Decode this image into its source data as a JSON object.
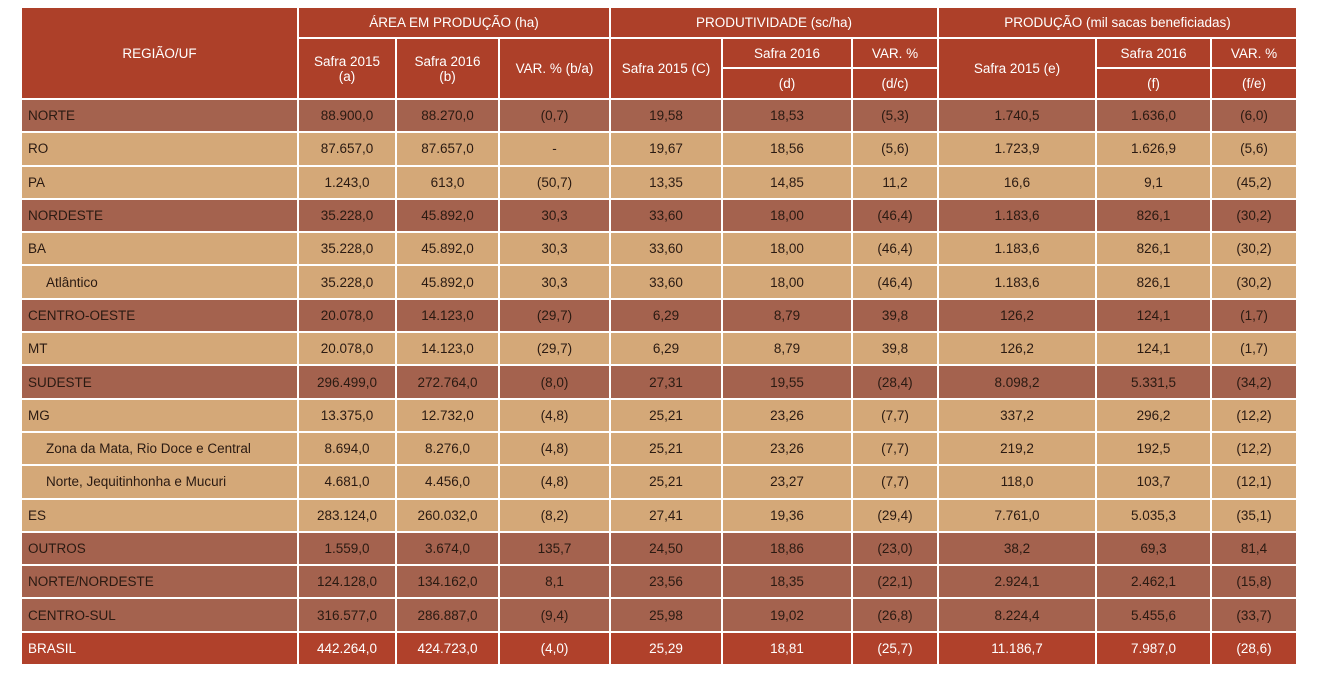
{
  "header": {
    "region_label": "REGIÃO/UF",
    "groups": [
      "ÁREA EM PRODUÇÃO (ha)",
      "PRODUTIVIDADE (sc/ha)",
      "PRODUÇÃO (mil sacas beneficiadas)"
    ],
    "area": {
      "a_line1": "Safra 2015",
      "a_line2": "(a)",
      "b_line1": "Safra 2016",
      "b_line2": "(b)",
      "var": "VAR. % (b/a)"
    },
    "prod": {
      "c": "Safra 2015 (C)",
      "d_top": "Safra 2016",
      "d_bottom": "(d)",
      "var_top": "VAR. %",
      "var_bottom": "(d/c)"
    },
    "producao": {
      "e": "Safra 2015 (e)",
      "f_top": "Safra 2016",
      "f_bottom": "(f)",
      "var_top": "VAR. %",
      "var_bottom": "(f/e)"
    }
  },
  "colors": {
    "header": "#ad4029",
    "region": "#a4624e",
    "state": "#d4a878",
    "total": "#b0412b"
  },
  "rows": [
    {
      "type": "region",
      "label": "NORTE",
      "values": [
        "88.900,0",
        "88.270,0",
        "(0,7)",
        "19,58",
        "18,53",
        "(5,3)",
        "1.740,5",
        "1.636,0",
        "(6,0)"
      ]
    },
    {
      "type": "state",
      "label": "RO",
      "values": [
        "87.657,0",
        "87.657,0",
        "-",
        "19,67",
        "18,56",
        "(5,6)",
        "1.723,9",
        "1.626,9",
        "(5,6)"
      ]
    },
    {
      "type": "state",
      "label": "PA",
      "values": [
        "1.243,0",
        "613,0",
        "(50,7)",
        "13,35",
        "14,85",
        "11,2",
        "16,6",
        "9,1",
        "(45,2)"
      ]
    },
    {
      "type": "region",
      "label": "NORDESTE",
      "values": [
        "35.228,0",
        "45.892,0",
        "30,3",
        "33,60",
        "18,00",
        "(46,4)",
        "1.183,6",
        "826,1",
        "(30,2)"
      ]
    },
    {
      "type": "state",
      "label": "BA",
      "values": [
        "35.228,0",
        "45.892,0",
        "30,3",
        "33,60",
        "18,00",
        "(46,4)",
        "1.183,6",
        "826,1",
        "(30,2)"
      ]
    },
    {
      "type": "sub",
      "label": "Atlântico",
      "values": [
        "35.228,0",
        "45.892,0",
        "30,3",
        "33,60",
        "18,00",
        "(46,4)",
        "1.183,6",
        "826,1",
        "(30,2)"
      ]
    },
    {
      "type": "region",
      "label": "CENTRO-OESTE",
      "values": [
        "20.078,0",
        "14.123,0",
        "(29,7)",
        "6,29",
        "8,79",
        "39,8",
        "126,2",
        "124,1",
        "(1,7)"
      ]
    },
    {
      "type": "state",
      "label": "MT",
      "values": [
        "20.078,0",
        "14.123,0",
        "(29,7)",
        "6,29",
        "8,79",
        "39,8",
        "126,2",
        "124,1",
        "(1,7)"
      ]
    },
    {
      "type": "region",
      "label": "SUDESTE",
      "values": [
        "296.499,0",
        "272.764,0",
        "(8,0)",
        "27,31",
        "19,55",
        "(28,4)",
        "8.098,2",
        "5.331,5",
        "(34,2)"
      ]
    },
    {
      "type": "state",
      "label": "MG",
      "values": [
        "13.375,0",
        "12.732,0",
        "(4,8)",
        "25,21",
        "23,26",
        "(7,7)",
        "337,2",
        "296,2",
        "(12,2)"
      ]
    },
    {
      "type": "sub",
      "label": "Zona da Mata, Rio Doce e Central",
      "values": [
        "8.694,0",
        "8.276,0",
        "(4,8)",
        "25,21",
        "23,26",
        "(7,7)",
        "219,2",
        "192,5",
        "(12,2)"
      ]
    },
    {
      "type": "sub",
      "label": "Norte, Jequitinhonha e Mucuri",
      "values": [
        "4.681,0",
        "4.456,0",
        "(4,8)",
        "25,21",
        "23,27",
        "(7,7)",
        "118,0",
        "103,7",
        "(12,1)"
      ]
    },
    {
      "type": "state",
      "label": "ES",
      "values": [
        "283.124,0",
        "260.032,0",
        "(8,2)",
        "27,41",
        "19,36",
        "(29,4)",
        "7.761,0",
        "5.035,3",
        "(35,1)"
      ]
    },
    {
      "type": "region",
      "label": "OUTROS",
      "values": [
        "1.559,0",
        "3.674,0",
        "135,7",
        "24,50",
        "18,86",
        "(23,0)",
        "38,2",
        "69,3",
        "81,4"
      ]
    },
    {
      "type": "region",
      "label": "NORTE/NORDESTE",
      "values": [
        "124.128,0",
        "134.162,0",
        "8,1",
        "23,56",
        "18,35",
        "(22,1)",
        "2.924,1",
        "2.462,1",
        "(15,8)"
      ]
    },
    {
      "type": "region",
      "label": "CENTRO-SUL",
      "values": [
        "316.577,0",
        "286.887,0",
        "(9,4)",
        "25,98",
        "19,02",
        "(26,8)",
        "8.224,4",
        "5.455,6",
        "(33,7)"
      ]
    },
    {
      "type": "total",
      "label": "BRASIL",
      "values": [
        "442.264,0",
        "424.723,0",
        "(4,0)",
        "25,29",
        "18,81",
        "(25,7)",
        "11.186,7",
        "7.987,0",
        "(28,6)"
      ]
    }
  ]
}
